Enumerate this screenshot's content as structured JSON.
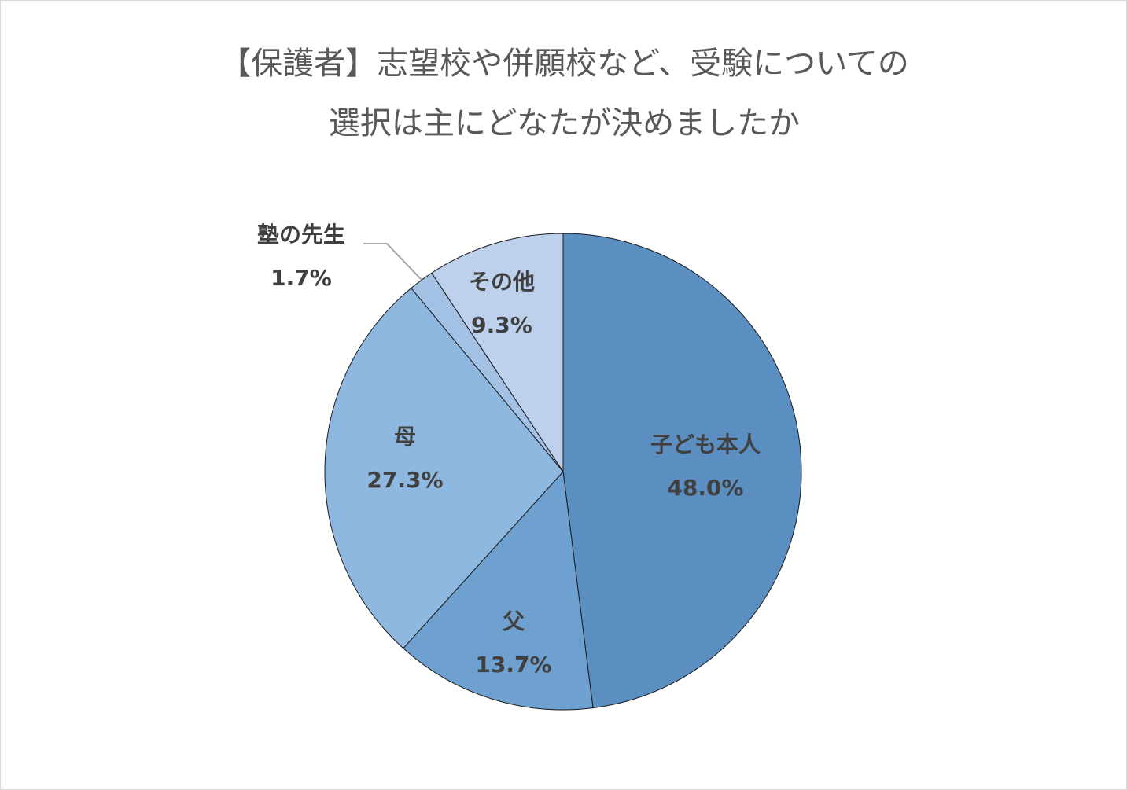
{
  "chart_data": {
    "type": "pie",
    "title_lines": [
      "【保護者】志望校や併願校など、受験についての",
      "選択は主にどなたが決めましたか"
    ],
    "slices": [
      {
        "label": "子ども本人",
        "value": 48.0,
        "value_label": "48.0%",
        "color": "#5b8fc2"
      },
      {
        "label": "父",
        "value": 13.7,
        "value_label": "13.7%",
        "color": "#6fa1d0"
      },
      {
        "label": "母",
        "value": 27.3,
        "value_label": "27.3%",
        "color": "#8eb8e0"
      },
      {
        "label": "塾の先生",
        "value": 1.7,
        "value_label": "1.7%",
        "color": "#a3c0e5"
      },
      {
        "label": "その他",
        "value": 9.3,
        "value_label": "9.3%",
        "color": "#bdd0ec"
      }
    ],
    "start": "12 o'clock",
    "direction": "clockwise",
    "legend": "none"
  }
}
